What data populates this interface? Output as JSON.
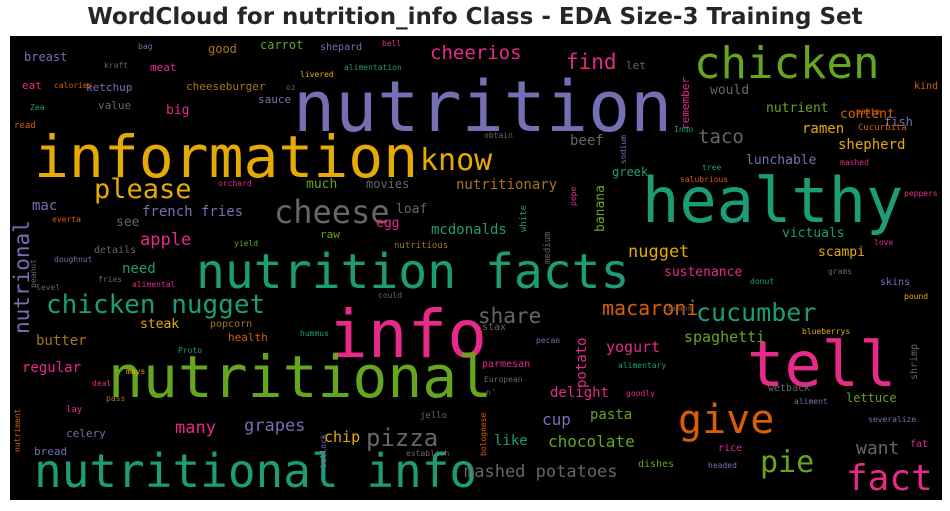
{
  "title": "WordCloud for nutrition_info Class - EDA Size-3 Training Set",
  "colors": {
    "background": "#000000",
    "title": "#262626",
    "purple": "#7570b3",
    "orange": "#d95f02",
    "teal": "#1b9e77",
    "pink": "#e7298a",
    "green": "#66a61e",
    "gold": "#e6ab02",
    "brown": "#a6761d",
    "gray": "#666666"
  },
  "words": {
    "nutrition": "nutrition",
    "information": "information",
    "healthy": "healthy",
    "nutrition_facts": "nutrition facts",
    "info": "info",
    "nutritional": "nutritional",
    "tell": "tell",
    "nutritional_info": "nutritional info",
    "chicken": "chicken",
    "chicken_nugget": "chicken nugget",
    "know": "know",
    "please": "please",
    "cheese": "cheese",
    "give": "give",
    "fact": "fact",
    "pie": "pie",
    "pizza": "pizza",
    "cucumber": "cucumber",
    "share": "share",
    "macaroni": "macaroni",
    "find": "find",
    "cheerios": "cheerios",
    "taco": "taco",
    "nutritional_vertical": "nutrional",
    "mashed_potatoes": "mashed potatoes",
    "many": "many",
    "grapes": "grapes",
    "chocolate": "chocolate",
    "want": "want",
    "apple": "apple",
    "nugget": "nugget",
    "spaghetti": "spaghetti",
    "yogurt": "yogurt",
    "french_fries": "french fries",
    "need": "need",
    "steak": "steak",
    "butter": "butter",
    "regular": "regular",
    "chip": "chip",
    "cup": "cup",
    "like": "like",
    "pasta": "pasta",
    "delight": "delight",
    "potato": "potato",
    "mcdonalds": "mcdonalds",
    "egg": "egg",
    "loaf": "loaf",
    "raw": "raw",
    "much": "much",
    "movies": "movies",
    "nutritionary": "nutritionary",
    "beef": "beef",
    "greek": "greek",
    "banana": "banana",
    "ramen": "ramen",
    "shepherd": "shepherd",
    "lunchable": "lunchable",
    "content": "content",
    "nutrient": "nutrient",
    "would": "would",
    "fish": "fish",
    "kind": "kind",
    "victuals": "victuals",
    "scampi": "scampi",
    "sustenance": "sustenance",
    "lettuce": "lettuce",
    "mac": "mac",
    "see": "see",
    "details": "details",
    "breast": "breast",
    "eat": "eat",
    "ketchup": "ketchup",
    "value": "value",
    "big": "big",
    "sauce": "sauce",
    "meat": "meat",
    "good": "good",
    "carrot": "carrot",
    "shepard": "shepard",
    "cheeseburger": "cheeseburger",
    "let": "let",
    "remember": "remember",
    "read": "read",
    "calories": "calories",
    "kraft": "kraft",
    "bag": "bag",
    "bell": "bell",
    "alimentation": "alimentation",
    "livered": "livered",
    "oz": "oz",
    "zea": "Zea",
    "orchard": "orchard",
    "paste": "paste",
    "cucurbita": "Cucurbita",
    "indo": "Indo",
    "obtain": "obtain",
    "sodium": "sodium",
    "mashed": "mashed",
    "tree": "tree",
    "salubrious": "salubrious",
    "peppers": "peppers",
    "love": "love",
    "grams": "grams",
    "skins": "skins",
    "pound": "pound",
    "donut": "donut",
    "beans": "beans",
    "blueberrys": "blueberrys",
    "shrimp": "shrimp",
    "aliment": "aliment",
    "wetback": "wetback",
    "severalize": "severalize",
    "fat": "fat",
    "rice": "rice",
    "headed": "headed",
    "dishes": "dishes",
    "establish": "establish",
    "bolognese": "bolognese",
    "bollock": "bollock",
    "n_prime": "n'",
    "european": "European",
    "alimentary": "alimentary",
    "goodly": "goodly",
    "pecan": "pecan",
    "parmesan": "parmesan",
    "stax": "stax",
    "jello": "jello",
    "health": "health",
    "hummus": "hummus",
    "popcorn": "popcorn",
    "proto": "Proto",
    "could": "could",
    "nutritious": "nutritious",
    "white": "white",
    "medium": "medium",
    "pepe": "pepe",
    "everta": "everta",
    "yield": "yield",
    "doughnut": "doughnut",
    "peanut": "peanut",
    "level": "level",
    "alimental": "alimental",
    "fries": "fries",
    "mays": "mays",
    "deal": "deal",
    "pass": "pass",
    "lay": "lay",
    "nutriment": "nutriment",
    "celery": "celery",
    "bread": "bread"
  }
}
